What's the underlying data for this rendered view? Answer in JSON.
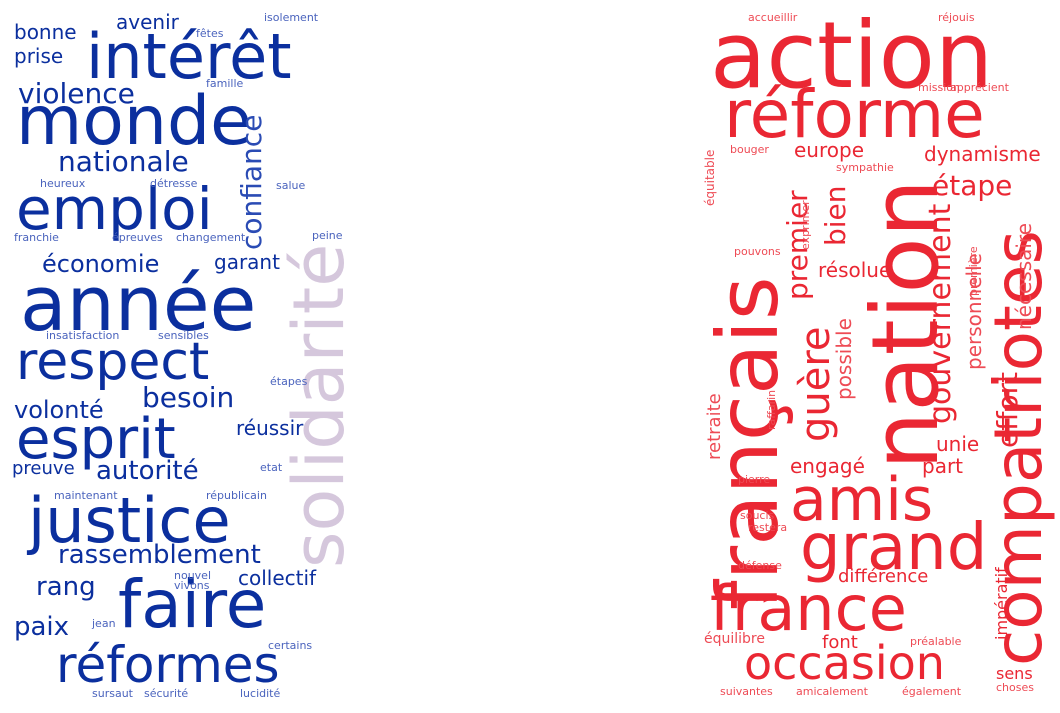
{
  "left_cloud": {
    "color": "#0b2f9e",
    "accent_color": "#d5c7dc",
    "words": [
      "intérêt",
      "monde",
      "emploi",
      "année",
      "respect",
      "esprit",
      "justice",
      "faire",
      "réformes",
      "solidarité",
      "confiance",
      "nationale",
      "violence",
      "économie",
      "garant",
      "besoin",
      "volonté",
      "autorité",
      "rassemblement",
      "rang",
      "paix",
      "collectif",
      "avenir",
      "bonne",
      "prise",
      "réussir",
      "preuve",
      "isolement",
      "fêtes",
      "famille",
      "heureux",
      "détresse",
      "salue",
      "franchie",
      "épreuves",
      "changement",
      "peine",
      "insatisfaction",
      "sensibles",
      "étapes",
      "etat",
      "maintenant",
      "républicain",
      "nouvel",
      "vivons",
      "jean",
      "certains",
      "sursaut",
      "sécurité",
      "lucidité"
    ]
  },
  "right_cloud": {
    "color": "#ea2733",
    "words": [
      "action",
      "réforme",
      "français",
      "nation",
      "compatriotes",
      "amis",
      "grand",
      "france",
      "occasion",
      "gouvernement",
      "guère",
      "premier",
      "bien",
      "europe",
      "dynamisme",
      "étape",
      "résolue",
      "possible",
      "personnelle",
      "nécessaire",
      "effort",
      "unie",
      "part",
      "engagé",
      "retraite",
      "équitable",
      "bouger",
      "exprimer",
      "sympathie",
      "pouvons",
      "première",
      "raffarin",
      "pierre",
      "soucis",
      "restera",
      "défense",
      "différence",
      "impératif",
      "font",
      "équilibre",
      "sens",
      "choses",
      "préalable",
      "suivantes",
      "amicalement",
      "également",
      "accueillir",
      "réjouis",
      "mission",
      "apprécient"
    ]
  }
}
